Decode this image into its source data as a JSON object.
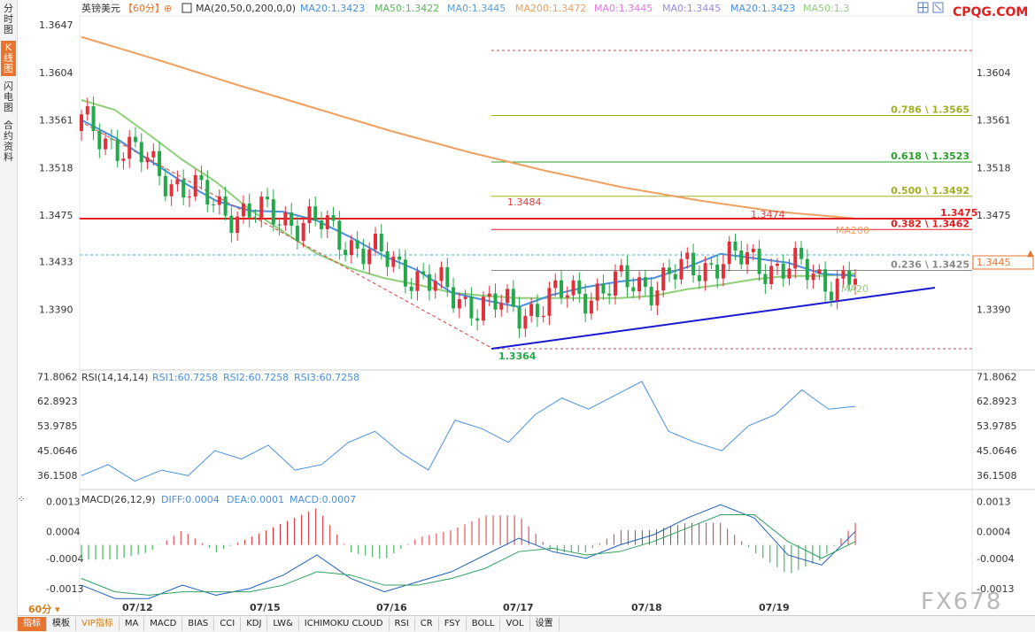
{
  "sidebar": {
    "tabs": [
      {
        "label": "分时图",
        "active": false
      },
      {
        "label": "K线图",
        "active": true
      },
      {
        "label": "闪电图",
        "active": false
      },
      {
        "label": "合约资料",
        "active": false
      }
    ]
  },
  "header": {
    "symbol": "英镑美元",
    "period": "【60分】",
    "ma_params": "MA(20,50,0,200,0,0)",
    "ma_values": [
      "MA20:1.3423",
      "MA50:1.3422",
      "MA0:1.3445",
      "MA200:1.3472",
      "MA0:1.3445",
      "MA0:1.3445",
      "MA20:1.3423",
      "MA50:1.3"
    ],
    "brand": "CPQG.COM",
    "watermark": "FX678"
  },
  "colors": {
    "up": "#e0303a",
    "down": "#25a84a",
    "ma20": "#4a8fe0",
    "ma50": "#8fcf7a",
    "ma200": "#f0a060",
    "resistance": "#e02020",
    "trendline": "#1a1ad0",
    "fib_green": "#2aa02a",
    "fib_olive": "#a0b020"
  },
  "chart_data": [
    {
      "type": "candlestick",
      "title": "英镑美元 60分",
      "y_ticks_left": [
        "1.3647",
        "1.3604",
        "1.3561",
        "1.3518",
        "1.3475",
        "1.3433",
        "1.3390"
      ],
      "y_ticks_right": [
        "1.3604",
        "1.3561",
        "1.3518",
        "1.3475",
        "1.3433",
        "1.3390"
      ],
      "ylim": [
        1.3335,
        1.3655
      ],
      "x_labels": [
        "07/12",
        "07/15",
        "07/16",
        "07/17",
        "07/18",
        "07/19"
      ],
      "current_price": "1.3445",
      "resistance": {
        "label": "1.3475",
        "value": 1.3475
      },
      "fib_levels": [
        {
          "label": "0.786 \\ 1.3565",
          "value": 1.3565
        },
        {
          "label": "0.618 \\ 1.3523",
          "value": 1.3523
        },
        {
          "label": "0.500 \\ 1.3492",
          "value": 1.3492
        },
        {
          "label": "0.382 \\ 1.3462",
          "value": 1.3462
        },
        {
          "label": "0.236 \\ 1.3425",
          "value": 1.3425
        }
      ],
      "annotations": [
        "1.3484",
        "1.3474",
        "1.3364",
        "MA200",
        "MA20"
      ],
      "series": [
        {
          "name": "MA20",
          "values": [
            1.3561,
            1.3545,
            1.3525,
            1.3505,
            1.3488,
            1.3479,
            1.3478,
            1.347,
            1.3455,
            1.3438,
            1.3425,
            1.3405,
            1.3398,
            1.3392,
            1.3403,
            1.341,
            1.3415,
            1.3418,
            1.3428,
            1.344,
            1.3436,
            1.3432,
            1.3422,
            1.342
          ]
        },
        {
          "name": "MA50",
          "values": [
            1.3579,
            1.357,
            1.3548,
            1.3525,
            1.3505,
            1.348,
            1.346,
            1.344,
            1.3427,
            1.3418,
            1.3412,
            1.3405,
            1.3402,
            1.34,
            1.34,
            1.34,
            1.34,
            1.3402,
            1.3408,
            1.3412,
            1.3417,
            1.342,
            1.342,
            1.3422
          ]
        },
        {
          "name": "MA200",
          "values": [
            1.3636,
            1.3615,
            1.3593,
            1.3572,
            1.3551,
            1.3532,
            1.3515,
            1.35,
            1.3488,
            1.3478,
            1.3472
          ]
        }
      ]
    },
    {
      "type": "line",
      "title": "RSI(14,14,14)",
      "legend": [
        "RSI1:60.7258",
        "RSI2:60.7258",
        "RSI3:60.7258"
      ],
      "y_ticks": [
        "71.8062",
        "62.8923",
        "53.9785",
        "45.0646",
        "36.1508"
      ],
      "ylim": [
        31.0,
        73.5
      ],
      "series": [
        {
          "name": "RSI1",
          "values": [
            36,
            40,
            34,
            38,
            36,
            45,
            42,
            47,
            38,
            40,
            48,
            52,
            44,
            38,
            56,
            53,
            48,
            58,
            64,
            60,
            65,
            70,
            52,
            48,
            45,
            54,
            58,
            67,
            60,
            61
          ]
        }
      ]
    },
    {
      "type": "bar",
      "title": "MACD(26,12,9)",
      "legend": [
        "DIFF:0.0004",
        "DEA:0.0001",
        "MACD:0.0007"
      ],
      "y_ticks": [
        "0.0013",
        "0.0004",
        "-0.0004",
        "-0.0013"
      ],
      "ylim": [
        -0.0017,
        0.0016
      ],
      "series": [
        {
          "name": "DIFF",
          "values": [
            -0.0012,
            -0.0016,
            -0.0016,
            -0.0012,
            -0.0015,
            -0.0013,
            -0.0009,
            -0.0003,
            -0.001,
            -0.0014,
            -0.0011,
            -0.0008,
            -0.0003,
            0.0002,
            -0.0002,
            -0.0004,
            0.0,
            0.0003,
            0.0008,
            0.0012,
            0.0008,
            -0.0003,
            -0.0006,
            0.0004
          ]
        },
        {
          "name": "DEA",
          "values": [
            -0.001,
            -0.0014,
            -0.0015,
            -0.0014,
            -0.0014,
            -0.0014,
            -0.0012,
            -0.0008,
            -0.0009,
            -0.0012,
            -0.0012,
            -0.001,
            -0.0007,
            -0.0002,
            -0.0001,
            -0.0003,
            -0.0002,
            0.0001,
            0.0005,
            0.0009,
            0.0009,
            0.0001,
            -0.0004,
            0.0001
          ]
        }
      ]
    }
  ],
  "bottom": {
    "period_label": "60分",
    "toolbar": [
      "指标",
      "模板",
      "VIP指标",
      "MA",
      "MACD",
      "BIAS",
      "CCI",
      "KDJ",
      "LW&",
      "ICHIMOKU CLOUD",
      "RSI",
      "CR",
      "FSY",
      "BOLL",
      "VOL",
      "设置"
    ]
  }
}
